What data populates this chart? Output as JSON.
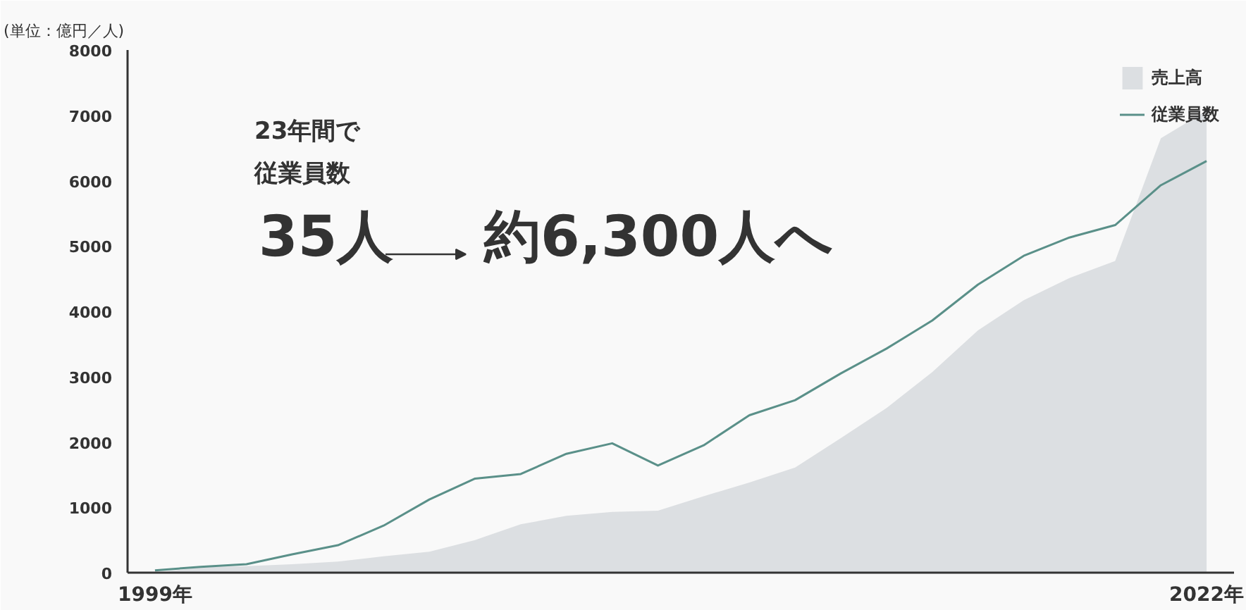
{
  "chart_data": {
    "type": "area",
    "ylabel": "(単位：億円／人)",
    "x": [
      1999,
      2000,
      2001,
      2002,
      2003,
      2004,
      2005,
      2006,
      2007,
      2008,
      2009,
      2010,
      2011,
      2012,
      2013,
      2014,
      2015,
      2016,
      2017,
      2018,
      2019,
      2020,
      2021,
      2022
    ],
    "series": [
      {
        "name": "売上高",
        "color": "#dcdfe2",
        "values": [
          0,
          80,
          100,
          130,
          170,
          250,
          320,
          500,
          740,
          870,
          930,
          950,
          1170,
          1380,
          1610,
          2060,
          2520,
          3070,
          3710,
          4170,
          4510,
          4770,
          6650,
          7070
        ]
      },
      {
        "name": "従業員数",
        "type": "line",
        "color": "#5a9089",
        "values": [
          35,
          90,
          130,
          280,
          420,
          720,
          1120,
          1440,
          1510,
          1820,
          1980,
          1640,
          1950,
          2410,
          2640,
          3050,
          3430,
          3860,
          4410,
          4850,
          5130,
          5320,
          5930,
          6300
        ]
      }
    ],
    "xlim": [
      1998.4,
      2022.6
    ],
    "xticks": [
      {
        "value": 1999,
        "label": "1999年"
      },
      {
        "value": 2022,
        "label": "2022年"
      }
    ],
    "ylim": [
      0,
      8000
    ],
    "yticks": [
      0,
      1000,
      2000,
      3000,
      4000,
      5000,
      6000,
      7000,
      8000
    ],
    "grid": false,
    "legend": "top right",
    "annotations": [
      "23年間で",
      "従業員数",
      "35人",
      "約6,300人へ"
    ]
  }
}
